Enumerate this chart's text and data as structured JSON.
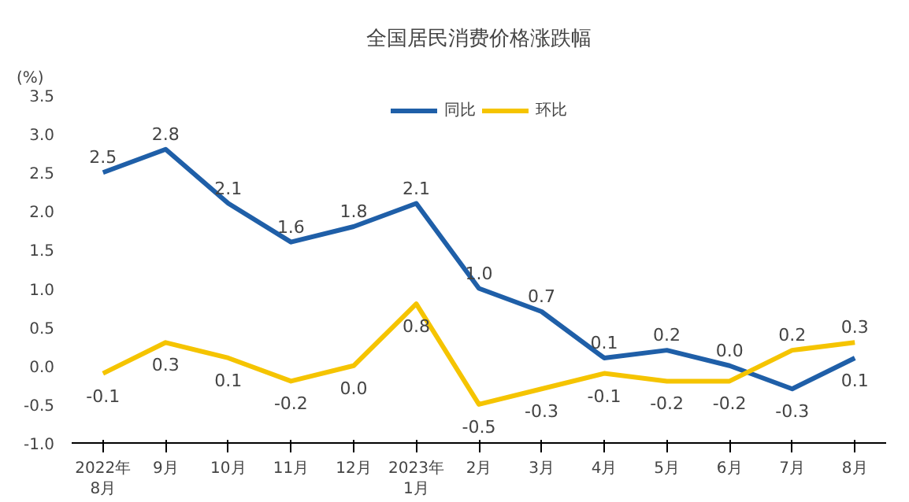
{
  "chart_data": {
    "type": "line",
    "title": "全国居民消费价格涨跌幅",
    "ylabel": "(%)",
    "categories": [
      "2022年\n8月",
      "9月",
      "10月",
      "11月",
      "12月",
      "2023年\n1月",
      "2月",
      "3月",
      "4月",
      "5月",
      "6月",
      "7月",
      "8月"
    ],
    "series": [
      {
        "name": "同比",
        "color": "#1f5fa8",
        "values": [
          2.5,
          2.8,
          2.1,
          1.6,
          1.8,
          2.1,
          1.0,
          0.7,
          0.1,
          0.2,
          0.0,
          -0.3,
          0.1
        ],
        "value_labels": [
          "2.5",
          "2.8",
          "2.1",
          "1.6",
          "1.8",
          "2.1",
          "1.0",
          "0.7",
          "0.1",
          "0.2",
          "0.0",
          "-0.3",
          "0.1"
        ]
      },
      {
        "name": "环比",
        "color": "#f5c400",
        "values": [
          -0.1,
          0.3,
          0.1,
          -0.2,
          0.0,
          0.8,
          -0.5,
          -0.3,
          -0.1,
          -0.2,
          -0.2,
          0.2,
          0.3
        ],
        "value_labels": [
          "-0.1",
          "0.3",
          "0.1",
          "-0.2",
          "0.0",
          "0.8",
          "-0.5",
          "-0.3",
          "-0.1",
          "-0.2",
          "-0.2",
          "0.2",
          "0.3"
        ]
      }
    ],
    "ylim": [
      -1.0,
      3.5
    ],
    "yticks": [
      {
        "value": -1.0,
        "label": "-1.0"
      },
      {
        "value": -0.5,
        "label": "-0.5"
      },
      {
        "value": 0.0,
        "label": "0.0"
      },
      {
        "value": 0.5,
        "label": "0.5"
      },
      {
        "value": 1.0,
        "label": "1.0"
      },
      {
        "value": 1.5,
        "label": "1.5"
      },
      {
        "value": 2.0,
        "label": "2.0"
      },
      {
        "value": 2.5,
        "label": "2.5"
      },
      {
        "value": 3.0,
        "label": "3.0"
      },
      {
        "value": 3.5,
        "label": "3.5"
      }
    ],
    "legend": "top",
    "marker": "none",
    "line_style": "solid",
    "grid": false
  }
}
